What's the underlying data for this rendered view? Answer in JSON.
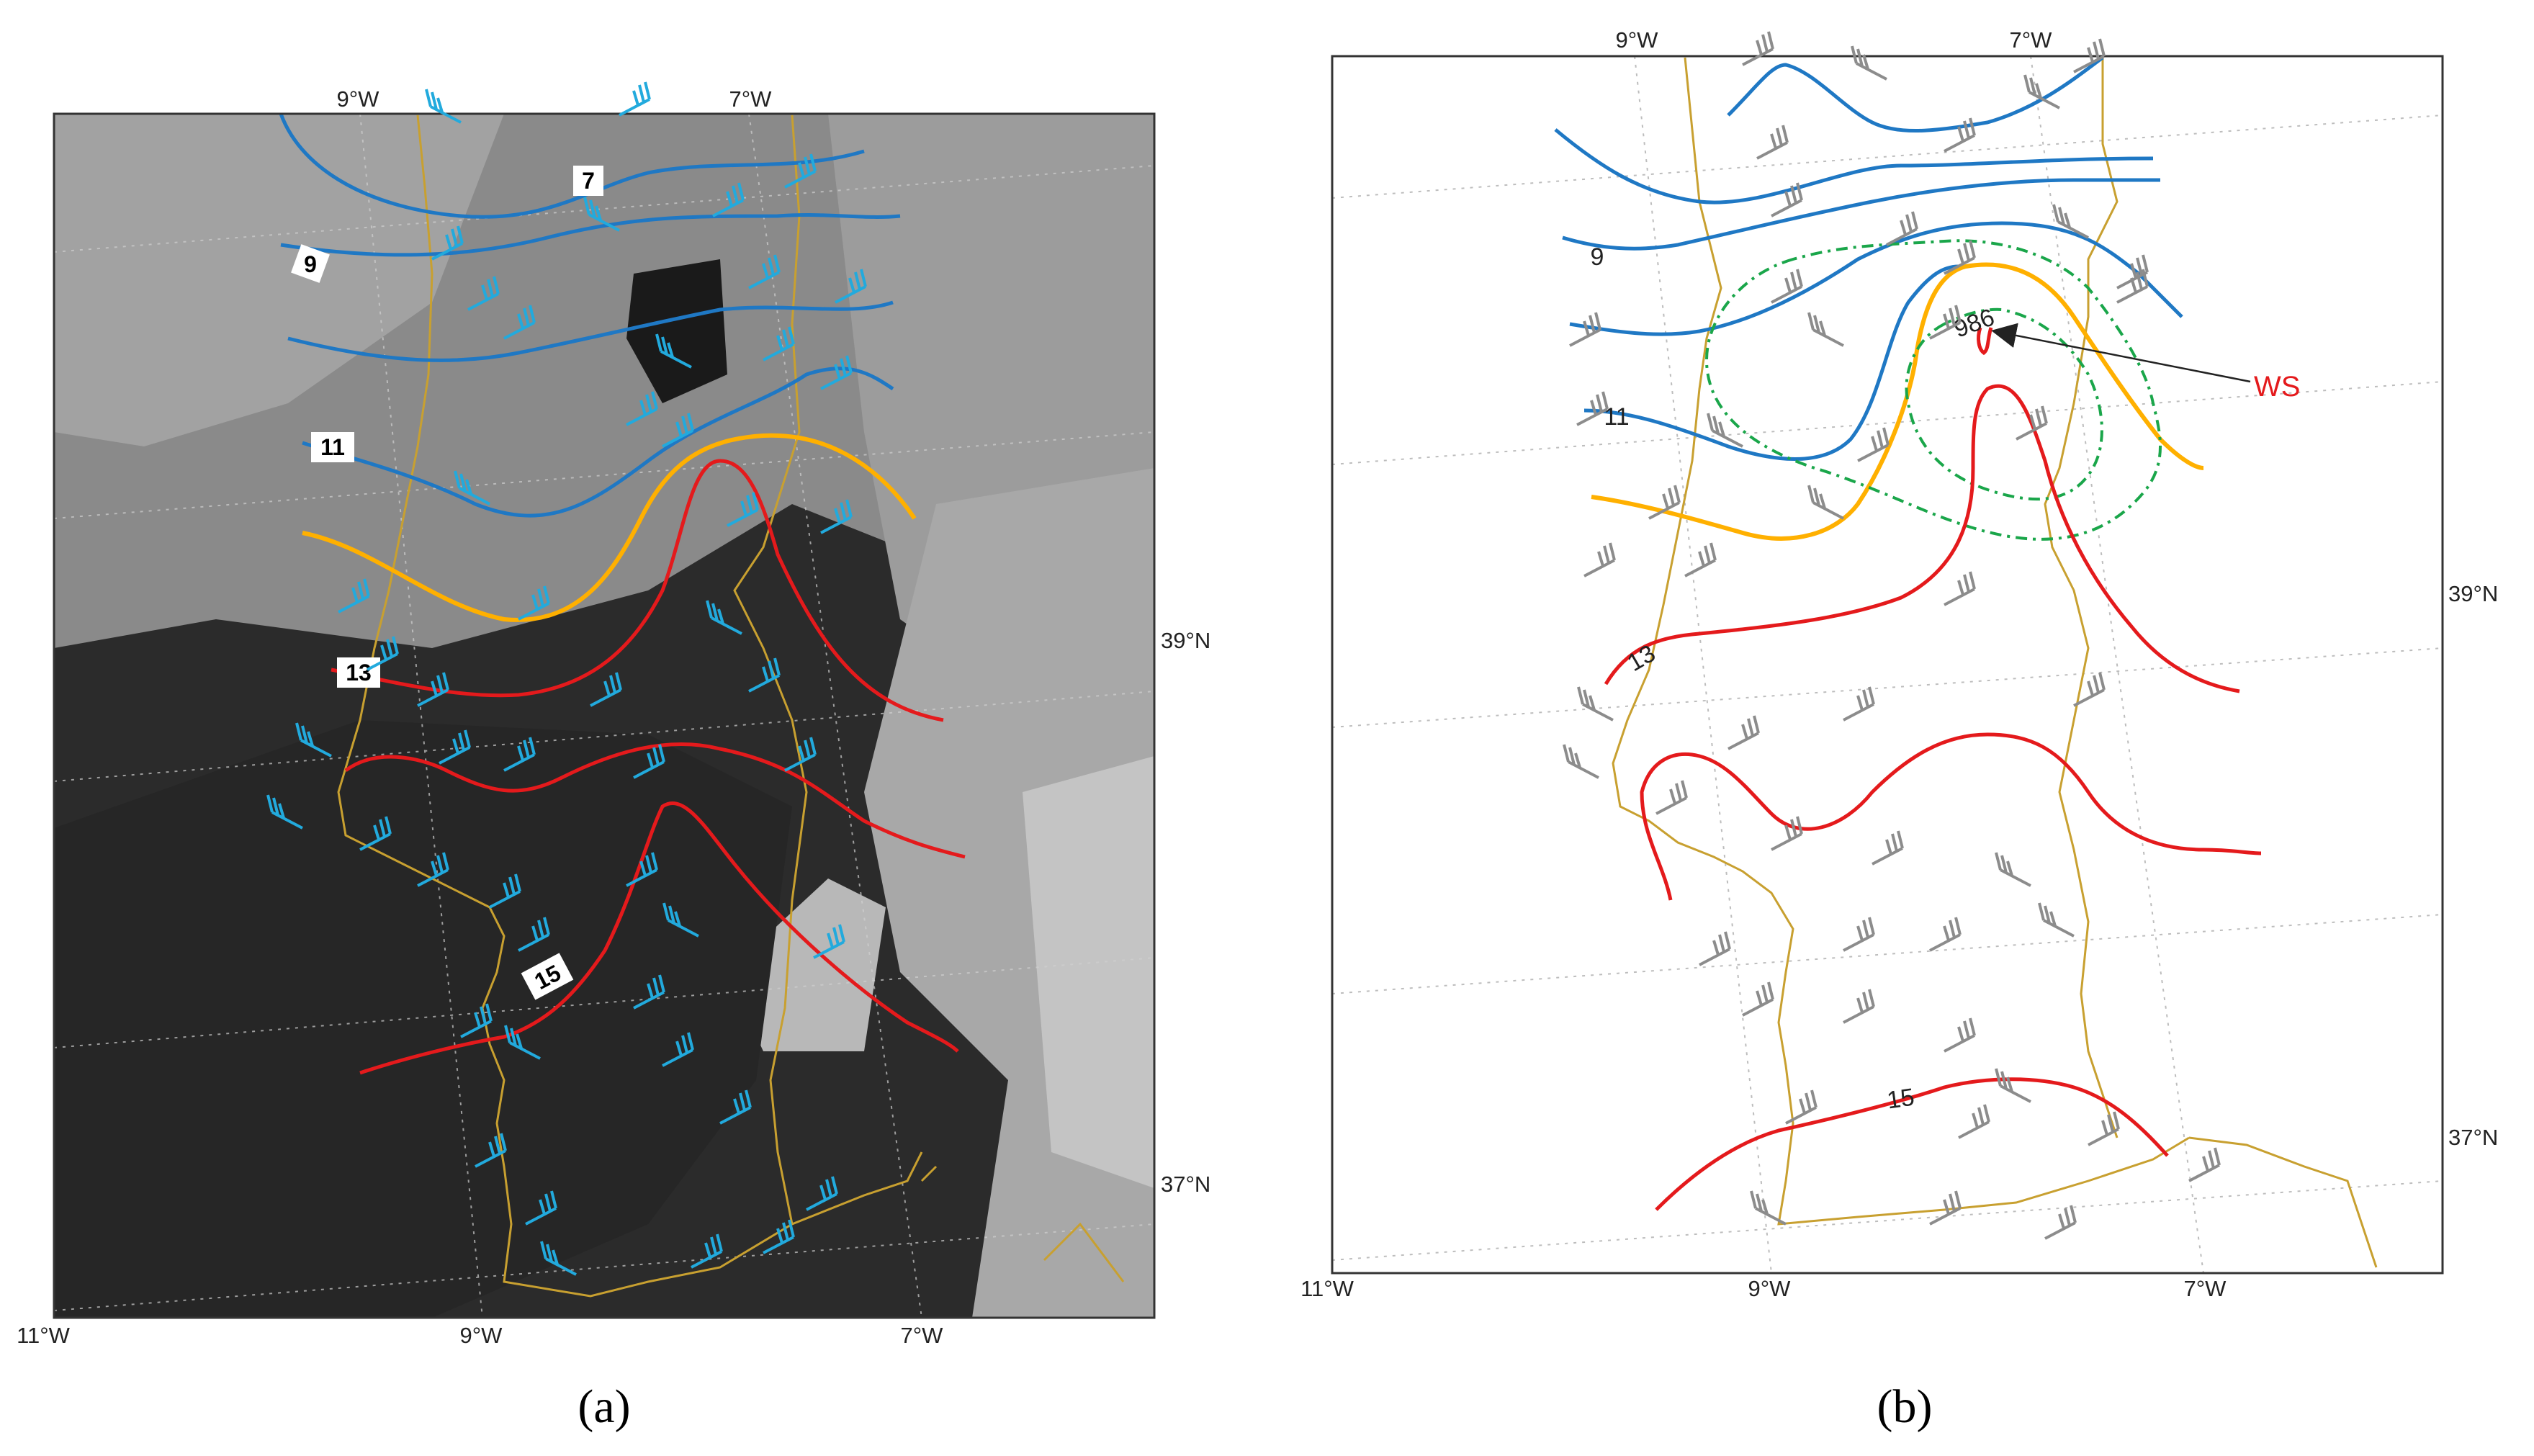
{
  "panel_a": {
    "caption": "(a)",
    "top_labels": [
      "9°W",
      "7°W"
    ],
    "bottom_labels": [
      "11°W",
      "9°W",
      "7°W"
    ],
    "right_labels": [
      "39°N",
      "37°N"
    ],
    "contour_labels": [
      "7",
      "9",
      "11",
      "13",
      "15"
    ]
  },
  "panel_b": {
    "caption": "(b)",
    "top_labels": [
      "9°W",
      "7°W"
    ],
    "bottom_labels": [
      "11°W",
      "9°W",
      "7°W"
    ],
    "right_labels": [
      "39°N",
      "37°N"
    ],
    "contour_labels": [
      "9",
      "11",
      "13",
      "15",
      "986"
    ],
    "annotation": "WS"
  },
  "colors": {
    "blue_contour": "#1f78c4",
    "orange_contour": "#ffb000",
    "red_contour": "#e41a1c",
    "green_contour": "#1aa64a",
    "coast": "#c8a030",
    "barb_a": "#22aadd",
    "barb_b": "#8c8c8c"
  }
}
